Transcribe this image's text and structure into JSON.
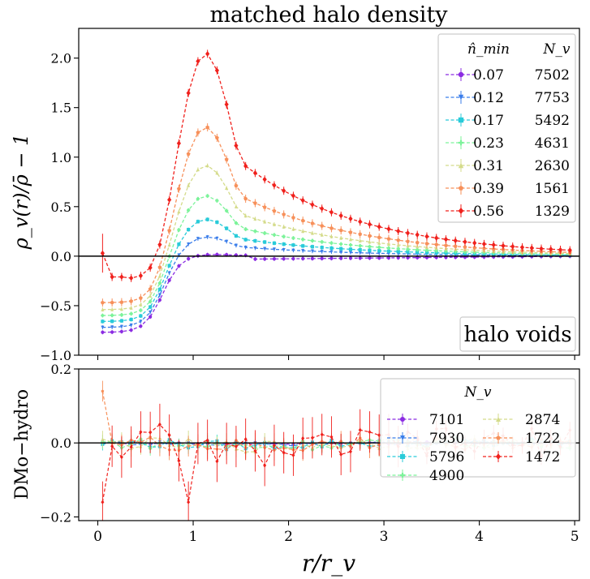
{
  "chart_data": [
    {
      "type": "line",
      "title": "matched halo density",
      "xlabel": "r/r_v",
      "ylabel": "ρ_v(r)/ρ̄ − 1",
      "xlim": [
        -0.2,
        5.05
      ],
      "ylim": [
        -1.0,
        2.3
      ],
      "xticks": [
        "0",
        "1",
        "2",
        "3",
        "4",
        "5"
      ],
      "yticks": [
        "−1.0",
        "−0.5",
        "0.0",
        "0.5",
        "1.0",
        "1.5",
        "2.0"
      ],
      "yticks_values": [
        -1.0,
        -0.5,
        0.0,
        0.5,
        1.0,
        1.5,
        2.0
      ],
      "reference_line": 0,
      "annotation": "halo voids",
      "legend": {
        "position": "top-right",
        "header_left": "n̂_min",
        "header_right": "N_v"
      },
      "series": [
        {
          "name": "0.07",
          "count": "7502",
          "color": "#8b2be2",
          "marker": "circle",
          "amplitude": 0.02,
          "trough": -0.77
        },
        {
          "name": "0.12",
          "count": "7753",
          "color": "#3a7dea",
          "marker": "triangle-down",
          "amplitude": 0.2,
          "trough": -0.72
        },
        {
          "name": "0.17",
          "count": "5492",
          "color": "#29cbd9",
          "marker": "square",
          "amplitude": 0.38,
          "trough": -0.66
        },
        {
          "name": "0.23",
          "count": "4631",
          "color": "#7cf39a",
          "marker": "plus",
          "amplitude": 0.62,
          "trough": -0.6
        },
        {
          "name": "0.31",
          "count": "2630",
          "color": "#d4db8a",
          "marker": "triangle-up",
          "amplitude": 0.93,
          "trough": -0.54
        },
        {
          "name": "0.39",
          "count": "1561",
          "color": "#f7905a",
          "marker": "pentagon",
          "amplitude": 1.32,
          "trough": -0.47
        },
        {
          "name": "0.56",
          "count": "1329",
          "color": "#f0201c",
          "marker": "diamond",
          "amplitude": 2.07,
          "trough": -0.23
        }
      ]
    },
    {
      "type": "line",
      "ylabel": "DMo−hydro",
      "xlabel": "r/r_v",
      "xlim": [
        -0.2,
        5.05
      ],
      "ylim": [
        -0.21,
        0.2
      ],
      "xticks": [
        "0",
        "1",
        "2",
        "3",
        "4",
        "5"
      ],
      "yticks": [
        "−0.2",
        "0.0",
        "0.2"
      ],
      "yticks_values": [
        -0.2,
        0.0,
        0.2
      ],
      "reference_line": 0,
      "legend": {
        "position": "right",
        "header": "N_v",
        "columns": 2
      },
      "series": [
        {
          "count": "7101",
          "color": "#8b2be2",
          "marker": "circle",
          "noise": 0.003
        },
        {
          "count": "7930",
          "color": "#3a7dea",
          "marker": "triangle-down",
          "noise": 0.006
        },
        {
          "count": "5796",
          "color": "#29cbd9",
          "marker": "square",
          "noise": 0.012
        },
        {
          "count": "4900",
          "color": "#7cf39a",
          "marker": "plus",
          "noise": 0.014
        },
        {
          "count": "2874",
          "color": "#d4db8a",
          "marker": "triangle-up",
          "noise": 0.016
        },
        {
          "count": "1722",
          "color": "#f7905a",
          "marker": "pentagon",
          "noise": 0.02
        },
        {
          "count": "1472",
          "color": "#f0201c",
          "marker": "diamond",
          "noise": 0.04
        }
      ]
    }
  ]
}
